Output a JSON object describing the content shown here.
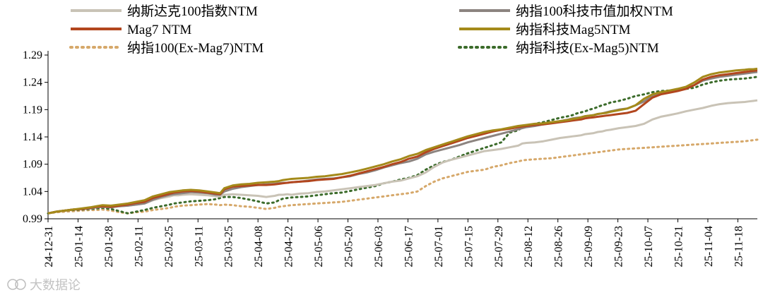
{
  "watermark": "大数据论",
  "chart_data": {
    "type": "line",
    "title": "",
    "xlabel": "",
    "ylabel": "",
    "ylim": [
      0.99,
      1.29
    ],
    "yticks": [
      "0.99",
      "1.04",
      "1.09",
      "1.14",
      "1.19",
      "1.24",
      "1.29"
    ],
    "xticks": [
      "24-12-31",
      "25-01-14",
      "25-01-28",
      "25-02-11",
      "25-02-25",
      "25-03-11",
      "25-03-25",
      "25-04-08",
      "25-04-22",
      "25-05-06",
      "25-05-20",
      "25-06-03",
      "25-06-17",
      "25-07-01",
      "25-07-15",
      "25-07-29",
      "25-08-12",
      "25-08-26",
      "25-09-09",
      "25-09-23",
      "25-10-07",
      "25-10-21",
      "25-11-04",
      "25-11-18"
    ],
    "legend_position": "top",
    "x": [
      0,
      4,
      8,
      12,
      16,
      20,
      23,
      26,
      30,
      34,
      38,
      42,
      46,
      50,
      54,
      58,
      60,
      62,
      64,
      68,
      72,
      76,
      80,
      82,
      84,
      88,
      92,
      96,
      100,
      104,
      108,
      110,
      112,
      114,
      116,
      120,
      124,
      128,
      132,
      136,
      140,
      144,
      148,
      152,
      156,
      160,
      164,
      168,
      172,
      176,
      180,
      184,
      188,
      192,
      196,
      200,
      204,
      208,
      212,
      216,
      220,
      224,
      226,
      228,
      232,
      236,
      240,
      244,
      248,
      250,
      252,
      254,
      256,
      258,
      260,
      262,
      264,
      266,
      268,
      272,
      276,
      280,
      284,
      288,
      292,
      296,
      300,
      304,
      308,
      312,
      316,
      320,
      324,
      328,
      332,
      334,
      336,
      338
    ],
    "series": [
      {
        "name": "纳斯达克100指数NTM",
        "color": "#c9c3b6",
        "style": "solid",
        "values": [
          1.0,
          1.003,
          1.005,
          1.007,
          1.008,
          1.009,
          1.011,
          1.012,
          1.011,
          1.013,
          1.014,
          1.016,
          1.018,
          1.024,
          1.028,
          1.031,
          1.033,
          1.033,
          1.034,
          1.035,
          1.034,
          1.033,
          1.031,
          1.031,
          1.034,
          1.035,
          1.034,
          1.033,
          1.032,
          1.03,
          1.032,
          1.034,
          1.034,
          1.035,
          1.034,
          1.036,
          1.037,
          1.039,
          1.04,
          1.042,
          1.044,
          1.046,
          1.048,
          1.05,
          1.052,
          1.055,
          1.058,
          1.06,
          1.064,
          1.068,
          1.075,
          1.085,
          1.093,
          1.098,
          1.102,
          1.106,
          1.11,
          1.114,
          1.116,
          1.118,
          1.121,
          1.124,
          1.128,
          1.129,
          1.13,
          1.132,
          1.135,
          1.138,
          1.14,
          1.141,
          1.142,
          1.143,
          1.145,
          1.146,
          1.147,
          1.149,
          1.15,
          1.152,
          1.153,
          1.156,
          1.158,
          1.16,
          1.164,
          1.172,
          1.177,
          1.18,
          1.183,
          1.187,
          1.19,
          1.193,
          1.197,
          1.2,
          1.202,
          1.203,
          1.204,
          1.205,
          1.206,
          1.207
        ]
      },
      {
        "name": "纳指100科技市值加权NTM",
        "color": "#8c8480",
        "style": "solid",
        "values": [
          1.0,
          1.003,
          1.005,
          1.007,
          1.008,
          1.009,
          1.011,
          1.012,
          1.011,
          1.013,
          1.014,
          1.016,
          1.018,
          1.025,
          1.03,
          1.034,
          1.035,
          1.036,
          1.037,
          1.039,
          1.038,
          1.037,
          1.034,
          1.034,
          1.04,
          1.045,
          1.048,
          1.05,
          1.052,
          1.053,
          1.054,
          1.055,
          1.056,
          1.056,
          1.057,
          1.058,
          1.06,
          1.062,
          1.063,
          1.064,
          1.066,
          1.068,
          1.072,
          1.075,
          1.079,
          1.084,
          1.088,
          1.092,
          1.095,
          1.1,
          1.108,
          1.113,
          1.117,
          1.121,
          1.125,
          1.13,
          1.134,
          1.138,
          1.142,
          1.146,
          1.15,
          1.154,
          1.156,
          1.158,
          1.16,
          1.163,
          1.166,
          1.169,
          1.172,
          1.174,
          1.175,
          1.176,
          1.178,
          1.179,
          1.18,
          1.182,
          1.183,
          1.185,
          1.187,
          1.19,
          1.192,
          1.198,
          1.205,
          1.215,
          1.22,
          1.223,
          1.225,
          1.228,
          1.235,
          1.243,
          1.247,
          1.25,
          1.252,
          1.254,
          1.256,
          1.257,
          1.258,
          1.259
        ]
      },
      {
        "name": "Mag7 NTM",
        "color": "#b2461e",
        "style": "solid",
        "values": [
          1.0,
          1.003,
          1.005,
          1.007,
          1.008,
          1.01,
          1.012,
          1.013,
          1.012,
          1.014,
          1.016,
          1.019,
          1.021,
          1.028,
          1.032,
          1.036,
          1.038,
          1.039,
          1.04,
          1.041,
          1.04,
          1.038,
          1.036,
          1.035,
          1.044,
          1.049,
          1.05,
          1.051,
          1.052,
          1.052,
          1.053,
          1.054,
          1.055,
          1.056,
          1.057,
          1.058,
          1.059,
          1.061,
          1.062,
          1.063,
          1.066,
          1.069,
          1.073,
          1.077,
          1.081,
          1.085,
          1.09,
          1.094,
          1.1,
          1.104,
          1.112,
          1.118,
          1.123,
          1.128,
          1.133,
          1.138,
          1.142,
          1.146,
          1.15,
          1.153,
          1.155,
          1.158,
          1.159,
          1.16,
          1.162,
          1.163,
          1.165,
          1.167,
          1.169,
          1.17,
          1.171,
          1.172,
          1.174,
          1.175,
          1.176,
          1.177,
          1.178,
          1.179,
          1.18,
          1.182,
          1.184,
          1.188,
          1.2,
          1.212,
          1.218,
          1.221,
          1.224,
          1.228,
          1.235,
          1.245,
          1.25,
          1.253,
          1.255,
          1.257,
          1.259,
          1.26,
          1.261,
          1.262
        ]
      },
      {
        "name": "纳指科技Mag5NTM",
        "color": "#a48a1a",
        "style": "solid",
        "values": [
          1.0,
          1.003,
          1.005,
          1.007,
          1.009,
          1.011,
          1.013,
          1.015,
          1.014,
          1.016,
          1.018,
          1.021,
          1.024,
          1.031,
          1.035,
          1.039,
          1.04,
          1.041,
          1.042,
          1.043,
          1.042,
          1.04,
          1.038,
          1.037,
          1.046,
          1.051,
          1.053,
          1.054,
          1.056,
          1.057,
          1.058,
          1.059,
          1.061,
          1.062,
          1.063,
          1.064,
          1.065,
          1.067,
          1.068,
          1.07,
          1.072,
          1.075,
          1.078,
          1.082,
          1.086,
          1.09,
          1.095,
          1.099,
          1.105,
          1.109,
          1.116,
          1.121,
          1.126,
          1.131,
          1.136,
          1.141,
          1.145,
          1.149,
          1.152,
          1.154,
          1.157,
          1.16,
          1.161,
          1.162,
          1.164,
          1.165,
          1.167,
          1.169,
          1.171,
          1.173,
          1.174,
          1.176,
          1.178,
          1.179,
          1.18,
          1.182,
          1.183,
          1.184,
          1.186,
          1.189,
          1.192,
          1.198,
          1.21,
          1.218,
          1.222,
          1.225,
          1.228,
          1.232,
          1.24,
          1.25,
          1.255,
          1.258,
          1.26,
          1.262,
          1.263,
          1.264,
          1.264,
          1.265
        ]
      },
      {
        "name": "纳指100(Ex-Mag7)NTM",
        "color": "#d6a86a",
        "style": "dotted",
        "values": [
          1.0,
          1.002,
          1.003,
          1.004,
          1.005,
          1.006,
          1.006,
          1.007,
          1.005,
          1.002,
          1.0,
          1.002,
          1.003,
          1.006,
          1.008,
          1.01,
          1.012,
          1.013,
          1.014,
          1.015,
          1.016,
          1.017,
          1.016,
          1.015,
          1.016,
          1.015,
          1.013,
          1.012,
          1.01,
          1.008,
          1.01,
          1.012,
          1.013,
          1.014,
          1.015,
          1.016,
          1.017,
          1.018,
          1.019,
          1.02,
          1.021,
          1.023,
          1.025,
          1.027,
          1.029,
          1.031,
          1.033,
          1.035,
          1.037,
          1.04,
          1.05,
          1.058,
          1.064,
          1.068,
          1.072,
          1.076,
          1.078,
          1.08,
          1.085,
          1.088,
          1.092,
          1.095,
          1.097,
          1.098,
          1.099,
          1.1,
          1.101,
          1.103,
          1.105,
          1.106,
          1.107,
          1.108,
          1.109,
          1.11,
          1.111,
          1.112,
          1.113,
          1.114,
          1.115,
          1.117,
          1.118,
          1.119,
          1.12,
          1.121,
          1.122,
          1.123,
          1.124,
          1.125,
          1.126,
          1.127,
          1.128,
          1.129,
          1.13,
          1.131,
          1.132,
          1.133,
          1.134,
          1.135
        ]
      },
      {
        "name": "纳指科技(Ex-Mag5)NTM",
        "color": "#3b6b2a",
        "style": "dotted",
        "values": [
          1.0,
          1.003,
          1.005,
          1.006,
          1.007,
          1.008,
          1.009,
          1.01,
          1.008,
          1.004,
          1.0,
          1.003,
          1.006,
          1.01,
          1.013,
          1.016,
          1.018,
          1.019,
          1.02,
          1.022,
          1.023,
          1.024,
          1.026,
          1.028,
          1.03,
          1.03,
          1.028,
          1.025,
          1.022,
          1.018,
          1.02,
          1.024,
          1.027,
          1.028,
          1.029,
          1.03,
          1.031,
          1.033,
          1.035,
          1.037,
          1.038,
          1.041,
          1.044,
          1.047,
          1.05,
          1.055,
          1.058,
          1.062,
          1.065,
          1.07,
          1.08,
          1.088,
          1.094,
          1.098,
          1.104,
          1.11,
          1.115,
          1.12,
          1.125,
          1.13,
          1.148,
          1.152,
          1.158,
          1.16,
          1.164,
          1.167,
          1.171,
          1.175,
          1.178,
          1.18,
          1.183,
          1.185,
          1.187,
          1.19,
          1.192,
          1.195,
          1.198,
          1.2,
          1.203,
          1.206,
          1.21,
          1.215,
          1.218,
          1.222,
          1.224,
          1.225,
          1.226,
          1.228,
          1.23,
          1.236,
          1.24,
          1.243,
          1.245,
          1.246,
          1.247,
          1.248,
          1.249,
          1.25
        ]
      }
    ]
  }
}
